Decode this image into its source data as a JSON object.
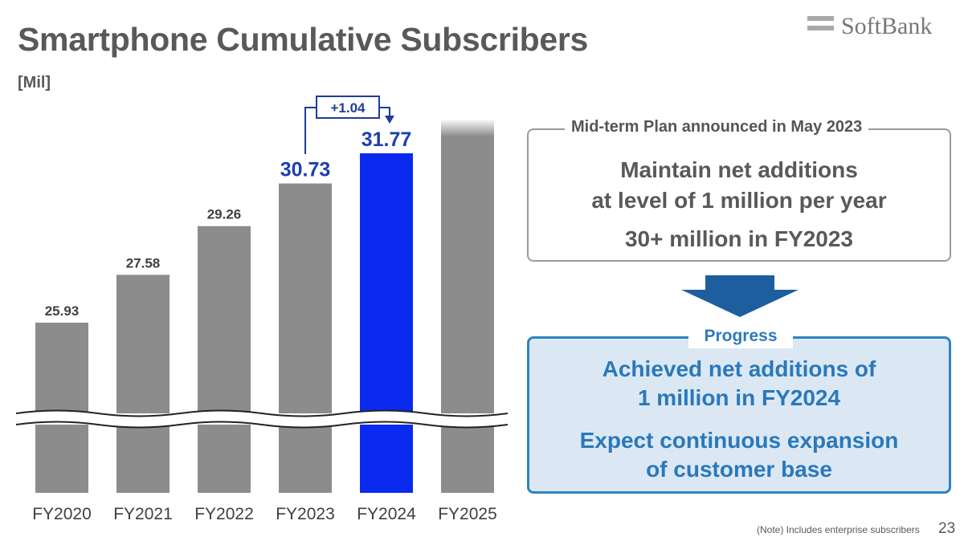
{
  "header": {
    "title": "Smartphone Cumulative Subscribers",
    "unit": "[Mil]",
    "logo_text": "SoftBank"
  },
  "chart_data": {
    "type": "bar",
    "categories": [
      "FY2020",
      "FY2021",
      "FY2022",
      "FY2023",
      "FY2024",
      "FY2025"
    ],
    "values": [
      25.93,
      27.58,
      29.26,
      30.73,
      31.77,
      null
    ],
    "value_labels": [
      "25.93",
      "27.58",
      "29.26",
      "30.73",
      "31.77",
      ""
    ],
    "highlight_category": "FY2024",
    "axis_break": true,
    "annotation": {
      "text": "+1.04",
      "from": "FY2023",
      "to": "FY2024"
    },
    "colors": {
      "bar": "#8c8c8c",
      "highlight_bar": "#0a2af0",
      "highlight_label": "#1b3fae",
      "label": "#404040",
      "annotation": "#1f3b9e"
    }
  },
  "mid_term_plan": {
    "legend": "Mid-term Plan announced in May 2023",
    "line1": "Maintain net additions\nat level of 1 million per year",
    "line2": "30+ million in FY2023"
  },
  "progress": {
    "legend": "Progress",
    "line1": "Achieved net additions of\n1 million in FY2024",
    "line2": "Expect continuous expansion\nof customer base"
  },
  "footer": {
    "note": "(Note) Includes enterprise subscribers",
    "page": "23"
  },
  "icons": {
    "logo": "softbank-logo",
    "arrow": "down-arrow-icon"
  }
}
